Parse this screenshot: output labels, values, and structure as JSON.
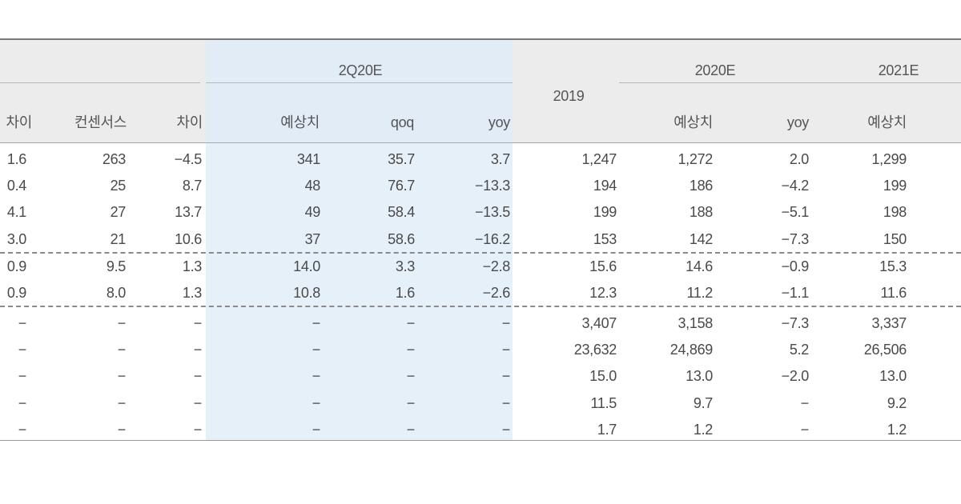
{
  "header": {
    "group_2q20e": "2Q20E",
    "group_2020e": "2020E",
    "group_2021e": "2021E",
    "col_2019": "2019",
    "columns": [
      "차이",
      "컨센서스",
      "차이",
      "예상치",
      "qoq",
      "yoy",
      "예상치",
      "yoy",
      "예상치"
    ]
  },
  "rows": [
    [
      "1.6",
      "263",
      "−4.5",
      "341",
      "35.7",
      "3.7",
      "1,247",
      "1,272",
      "2.0",
      "1,299"
    ],
    [
      "0.4",
      "25",
      "8.7",
      "48",
      "76.7",
      "−13.3",
      "194",
      "186",
      "−4.2",
      "199"
    ],
    [
      "4.1",
      "27",
      "13.7",
      "49",
      "58.4",
      "−13.5",
      "199",
      "188",
      "−5.1",
      "198"
    ],
    [
      "3.0",
      "21",
      "10.6",
      "37",
      "58.6",
      "−16.2",
      "153",
      "142",
      "−7.3",
      "150"
    ],
    [
      "0.9",
      "9.5",
      "1.3",
      "14.0",
      "3.3",
      "−2.8",
      "15.6",
      "14.6",
      "−0.9",
      "15.3"
    ],
    [
      "0.9",
      "8.0",
      "1.3",
      "10.8",
      "1.6",
      "−2.6",
      "12.3",
      "11.2",
      "−1.1",
      "11.6"
    ],
    [
      "−",
      "−",
      "−",
      "−",
      "−",
      "−",
      "3,407",
      "3,158",
      "−7.3",
      "3,337"
    ],
    [
      "−",
      "−",
      "−",
      "−",
      "−",
      "−",
      "23,632",
      "24,869",
      "5.2",
      "26,506"
    ],
    [
      "−",
      "−",
      "−",
      "−",
      "−",
      "−",
      "15.0",
      "13.0",
      "−2.0",
      "13.0"
    ],
    [
      "−",
      "−",
      "−",
      "−",
      "−",
      "−",
      "11.5",
      "9.7",
      "−",
      "9.2"
    ],
    [
      "−",
      "−",
      "−",
      "−",
      "−",
      "−",
      "1.7",
      "1.2",
      "−",
      "1.2"
    ]
  ]
}
